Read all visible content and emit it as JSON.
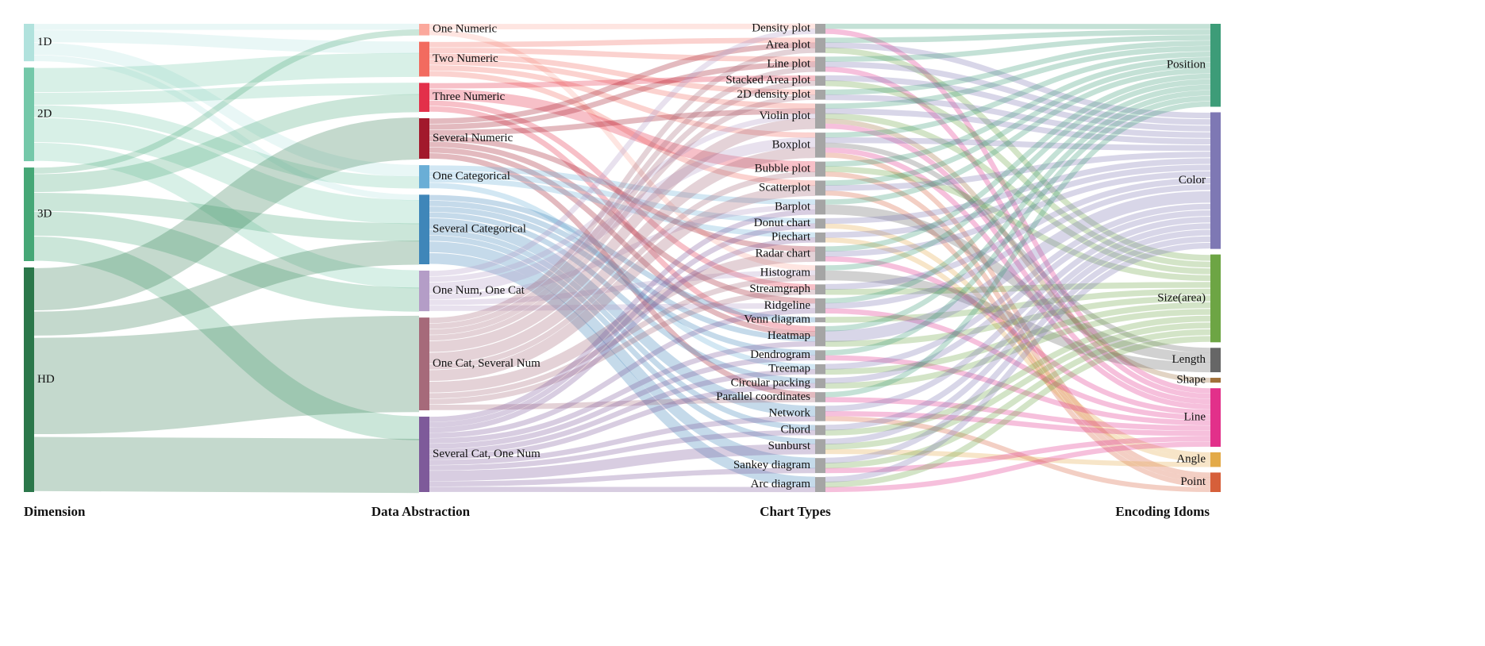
{
  "columns": [
    {
      "title": "Dimension",
      "align": "start"
    },
    {
      "title": "Data Abstraction",
      "align": "middle"
    },
    {
      "title": "Chart Types",
      "align": "middle"
    },
    {
      "title": "Encoding Idoms",
      "align": "end"
    }
  ],
  "columns_nodes": [
    [
      {
        "id": "1D",
        "label": "1D",
        "color": "#b1e2dd",
        "value": 6
      },
      {
        "id": "2D",
        "label": "2D",
        "color": "#74c8a9",
        "value": 15
      },
      {
        "id": "3D",
        "label": "3D",
        "color": "#45a776",
        "value": 15
      },
      {
        "id": "HD",
        "label": "HD",
        "color": "#2b774a",
        "value": 36
      }
    ],
    [
      {
        "id": "one_numeric",
        "label": "One Numeric",
        "color": "#fba89c",
        "value": 2
      },
      {
        "id": "two_numeric",
        "label": "Two Numeric",
        "color": "#f26b5f",
        "value": 6
      },
      {
        "id": "three_numeric",
        "label": "Three Numeric",
        "color": "#e3304a",
        "value": 5
      },
      {
        "id": "several_numeric",
        "label": "Several Numeric",
        "color": "#a2192c",
        "value": 7
      },
      {
        "id": "one_categorical",
        "label": "One Categorical",
        "color": "#6aaed6",
        "value": 4
      },
      {
        "id": "several_categorical",
        "label": "Several Categorical",
        "color": "#3f86b9",
        "value": 12
      },
      {
        "id": "one_num_one_cat",
        "label": "One Num, One Cat",
        "color": "#b49dc7",
        "value": 7
      },
      {
        "id": "one_cat_several_num",
        "label": "One Cat, Several Num",
        "color": "#a66a7a",
        "value": 16
      },
      {
        "id": "several_cat_one_num",
        "label": "Several Cat, One Num",
        "color": "#7e5a9a",
        "value": 13
      }
    ],
    [
      {
        "id": "density_plot",
        "label": "Density plot",
        "color": "#a5a5a5",
        "value": 2
      },
      {
        "id": "area_plot",
        "label": "Area plot",
        "color": "#a5a5a5",
        "value": 3
      },
      {
        "id": "line_plot",
        "label": "Line plot",
        "color": "#a5a5a5",
        "value": 3
      },
      {
        "id": "stacked_area_plot",
        "label": "Stacked Area plot",
        "color": "#a5a5a5",
        "value": 2
      },
      {
        "id": "2d_density_plot",
        "label": "2D density plot",
        "color": "#a5a5a5",
        "value": 2
      },
      {
        "id": "violin_plot",
        "label": "Violin plot",
        "color": "#a5a5a5",
        "value": 5
      },
      {
        "id": "boxplot",
        "label": "Boxplot",
        "color": "#a5a5a5",
        "value": 5
      },
      {
        "id": "bubble_plot",
        "label": "Bubble plot",
        "color": "#a5a5a5",
        "value": 3
      },
      {
        "id": "scatterplot",
        "label": "Scatterplot",
        "color": "#a5a5a5",
        "value": 3
      },
      {
        "id": "barplot",
        "label": "Barplot",
        "color": "#a5a5a5",
        "value": 3
      },
      {
        "id": "donut_chart",
        "label": "Donut chart",
        "color": "#a5a5a5",
        "value": 2
      },
      {
        "id": "piechart",
        "label": "Piechart",
        "color": "#a5a5a5",
        "value": 2
      },
      {
        "id": "radar_chart",
        "label": "Radar chart",
        "color": "#a5a5a5",
        "value": 3
      },
      {
        "id": "histogram",
        "label": "Histogram",
        "color": "#a5a5a5",
        "value": 3
      },
      {
        "id": "streamgraph",
        "label": "Streamgraph",
        "color": "#a5a5a5",
        "value": 2
      },
      {
        "id": "ridgeline",
        "label": "Ridgeline",
        "color": "#a5a5a5",
        "value": 3
      },
      {
        "id": "venn_diagram",
        "label": "Venn diagram",
        "color": "#a5a5a5",
        "value": 1
      },
      {
        "id": "heatmap",
        "label": "Heatmap",
        "color": "#a5a5a5",
        "value": 4
      },
      {
        "id": "dendrogram",
        "label": "Dendrogram",
        "color": "#a5a5a5",
        "value": 2
      },
      {
        "id": "treemap",
        "label": "Treemap",
        "color": "#a5a5a5",
        "value": 2
      },
      {
        "id": "circular_packing",
        "label": "Circular packing",
        "color": "#a5a5a5",
        "value": 2
      },
      {
        "id": "parallel_coordinates",
        "label": "Parallel coordinates",
        "color": "#a5a5a5",
        "value": 2
      },
      {
        "id": "network",
        "label": "Network",
        "color": "#a5a5a5",
        "value": 3
      },
      {
        "id": "chord",
        "label": "Chord",
        "color": "#a5a5a5",
        "value": 2
      },
      {
        "id": "sunburst",
        "label": "Sunburst",
        "color": "#a5a5a5",
        "value": 3
      },
      {
        "id": "sankey_diagram",
        "label": "Sankey diagram",
        "color": "#a5a5a5",
        "value": 3
      },
      {
        "id": "arc_diagram",
        "label": "Arc diagram",
        "color": "#a5a5a5",
        "value": 3
      }
    ],
    [
      {
        "id": "position",
        "label": "Position",
        "color": "#3d9c78",
        "value": 17
      },
      {
        "id": "color",
        "label": "Color",
        "color": "#7e78b4",
        "value": 28
      },
      {
        "id": "size_area",
        "label": "Size(area)",
        "color": "#6da544",
        "value": 18
      },
      {
        "id": "length",
        "label": "Length",
        "color": "#666666",
        "value": 5
      },
      {
        "id": "shape",
        "label": "Shape",
        "color": "#a0703a",
        "value": 1
      },
      {
        "id": "line",
        "label": "Line",
        "color": "#e2308a",
        "value": 12
      },
      {
        "id": "angle",
        "label": "Angle",
        "color": "#e3aa48",
        "value": 3
      },
      {
        "id": "point",
        "label": "Point",
        "color": "#d65f3a",
        "value": 4
      }
    ]
  ],
  "links": [
    [
      "1D",
      "one_numeric",
      1
    ],
    [
      "1D",
      "two_numeric",
      2
    ],
    [
      "1D",
      "one_categorical",
      2
    ],
    [
      "1D",
      "several_categorical",
      1
    ],
    [
      "2D",
      "two_numeric",
      4
    ],
    [
      "2D",
      "three_numeric",
      2
    ],
    [
      "2D",
      "one_categorical",
      2
    ],
    [
      "2D",
      "several_categorical",
      4
    ],
    [
      "2D",
      "one_num_one_cat",
      3
    ],
    [
      "3D",
      "one_numeric",
      1
    ],
    [
      "3D",
      "three_numeric",
      3
    ],
    [
      "3D",
      "several_categorical",
      3
    ],
    [
      "3D",
      "one_num_one_cat",
      4
    ],
    [
      "3D",
      "several_cat_one_num",
      4
    ],
    [
      "HD",
      "several_numeric",
      7
    ],
    [
      "HD",
      "several_categorical",
      4
    ],
    [
      "HD",
      "one_cat_several_num",
      16
    ],
    [
      "HD",
      "several_cat_one_num",
      9
    ],
    [
      "one_numeric",
      "density_plot",
      1
    ],
    [
      "one_numeric",
      "histogram",
      1
    ],
    [
      "two_numeric",
      "area_plot",
      1
    ],
    [
      "two_numeric",
      "line_plot",
      1
    ],
    [
      "two_numeric",
      "2d_density_plot",
      1
    ],
    [
      "two_numeric",
      "scatterplot",
      1
    ],
    [
      "two_numeric",
      "boxplot",
      1
    ],
    [
      "two_numeric",
      "violin_plot",
      1
    ],
    [
      "three_numeric",
      "bubble_plot",
      2
    ],
    [
      "three_numeric",
      "stacked_area_plot",
      1
    ],
    [
      "three_numeric",
      "streamgraph",
      1
    ],
    [
      "three_numeric",
      "heatmap",
      1
    ],
    [
      "several_numeric",
      "line_plot",
      1
    ],
    [
      "several_numeric",
      "area_plot",
      1
    ],
    [
      "several_numeric",
      "radar_chart",
      1
    ],
    [
      "several_numeric",
      "parallel_coordinates",
      1
    ],
    [
      "several_numeric",
      "heatmap",
      1
    ],
    [
      "several_numeric",
      "ridgeline",
      1
    ],
    [
      "several_numeric",
      "violin_plot",
      1
    ],
    [
      "one_categorical",
      "barplot",
      1
    ],
    [
      "one_categorical",
      "donut_chart",
      1
    ],
    [
      "one_categorical",
      "piechart",
      1
    ],
    [
      "one_categorical",
      "treemap",
      1
    ],
    [
      "several_categorical",
      "venn_diagram",
      1
    ],
    [
      "several_categorical",
      "heatmap",
      1
    ],
    [
      "several_categorical",
      "dendrogram",
      1
    ],
    [
      "several_categorical",
      "network",
      2
    ],
    [
      "several_categorical",
      "chord",
      1
    ],
    [
      "several_categorical",
      "sankey_diagram",
      2
    ],
    [
      "several_categorical",
      "arc_diagram",
      2
    ],
    [
      "several_categorical",
      "sunburst",
      1
    ],
    [
      "several_categorical",
      "circular_packing",
      1
    ],
    [
      "one_num_one_cat",
      "boxplot",
      2
    ],
    [
      "one_num_one_cat",
      "violin_plot",
      1
    ],
    [
      "one_num_one_cat",
      "density_plot",
      1
    ],
    [
      "one_num_one_cat",
      "barplot",
      1
    ],
    [
      "one_num_one_cat",
      "histogram",
      1
    ],
    [
      "one_num_one_cat",
      "ridgeline",
      1
    ],
    [
      "one_cat_several_num",
      "boxplot",
      2
    ],
    [
      "one_cat_several_num",
      "violin_plot",
      2
    ],
    [
      "one_cat_several_num",
      "area_plot",
      1
    ],
    [
      "one_cat_several_num",
      "line_plot",
      1
    ],
    [
      "one_cat_several_num",
      "stacked_area_plot",
      1
    ],
    [
      "one_cat_several_num",
      "2d_density_plot",
      1
    ],
    [
      "one_cat_several_num",
      "bubble_plot",
      1
    ],
    [
      "one_cat_several_num",
      "scatterplot",
      2
    ],
    [
      "one_cat_several_num",
      "radar_chart",
      2
    ],
    [
      "one_cat_several_num",
      "histogram",
      1
    ],
    [
      "one_cat_several_num",
      "streamgraph",
      1
    ],
    [
      "one_cat_several_num",
      "parallel_coordinates",
      1
    ],
    [
      "several_cat_one_num",
      "barplot",
      1
    ],
    [
      "several_cat_one_num",
      "donut_chart",
      1
    ],
    [
      "several_cat_one_num",
      "piechart",
      1
    ],
    [
      "several_cat_one_num",
      "ridgeline",
      1
    ],
    [
      "several_cat_one_num",
      "heatmap",
      1
    ],
    [
      "several_cat_one_num",
      "dendrogram",
      1
    ],
    [
      "several_cat_one_num",
      "treemap",
      1
    ],
    [
      "several_cat_one_num",
      "circular_packing",
      1
    ],
    [
      "several_cat_one_num",
      "network",
      1
    ],
    [
      "several_cat_one_num",
      "chord",
      1
    ],
    [
      "several_cat_one_num",
      "sunburst",
      2
    ],
    [
      "several_cat_one_num",
      "sankey_diagram",
      1
    ],
    [
      "several_cat_one_num",
      "arc_diagram",
      1
    ],
    [
      "density_plot",
      "position",
      1
    ],
    [
      "density_plot",
      "line",
      1
    ],
    [
      "area_plot",
      "position",
      1
    ],
    [
      "area_plot",
      "size_area",
      1
    ],
    [
      "area_plot",
      "color",
      1
    ],
    [
      "line_plot",
      "line",
      1
    ],
    [
      "line_plot",
      "position",
      1
    ],
    [
      "line_plot",
      "color",
      1
    ],
    [
      "stacked_area_plot",
      "size_area",
      1
    ],
    [
      "stacked_area_plot",
      "color",
      1
    ],
    [
      "2d_density_plot",
      "color",
      1
    ],
    [
      "2d_density_plot",
      "position",
      1
    ],
    [
      "violin_plot",
      "position",
      1
    ],
    [
      "violin_plot",
      "size_area",
      1
    ],
    [
      "violin_plot",
      "color",
      1
    ],
    [
      "violin_plot",
      "shape",
      1
    ],
    [
      "violin_plot",
      "line",
      1
    ],
    [
      "boxplot",
      "position",
      1
    ],
    [
      "boxplot",
      "length",
      1
    ],
    [
      "boxplot",
      "line",
      1
    ],
    [
      "boxplot",
      "color",
      1
    ],
    [
      "boxplot",
      "point",
      1
    ],
    [
      "bubble_plot",
      "size_area",
      1
    ],
    [
      "bubble_plot",
      "position",
      1
    ],
    [
      "bubble_plot",
      "point",
      1
    ],
    [
      "scatterplot",
      "position",
      1
    ],
    [
      "scatterplot",
      "point",
      1
    ],
    [
      "scatterplot",
      "color",
      1
    ],
    [
      "barplot",
      "length",
      2
    ],
    [
      "barplot",
      "position",
      1
    ],
    [
      "donut_chart",
      "angle",
      1
    ],
    [
      "donut_chart",
      "color",
      1
    ],
    [
      "piechart",
      "angle",
      1
    ],
    [
      "piechart",
      "color",
      1
    ],
    [
      "radar_chart",
      "line",
      1
    ],
    [
      "radar_chart",
      "position",
      1
    ],
    [
      "radar_chart",
      "color",
      1
    ],
    [
      "histogram",
      "length",
      2
    ],
    [
      "histogram",
      "position",
      1
    ],
    [
      "streamgraph",
      "size_area",
      1
    ],
    [
      "streamgraph",
      "color",
      1
    ],
    [
      "ridgeline",
      "position",
      1
    ],
    [
      "ridgeline",
      "line",
      1
    ],
    [
      "ridgeline",
      "color",
      1
    ],
    [
      "venn_diagram",
      "size_area",
      1
    ],
    [
      "heatmap",
      "color",
      2
    ],
    [
      "heatmap",
      "position",
      1
    ],
    [
      "heatmap",
      "size_area",
      1
    ],
    [
      "dendrogram",
      "line",
      1
    ],
    [
      "dendrogram",
      "position",
      1
    ],
    [
      "treemap",
      "size_area",
      1
    ],
    [
      "treemap",
      "color",
      1
    ],
    [
      "circular_packing",
      "size_area",
      1
    ],
    [
      "circular_packing",
      "color",
      1
    ],
    [
      "parallel_coordinates",
      "line",
      1
    ],
    [
      "parallel_coordinates",
      "position",
      1
    ],
    [
      "network",
      "point",
      1
    ],
    [
      "network",
      "line",
      1
    ],
    [
      "network",
      "color",
      1
    ],
    [
      "chord",
      "size_area",
      1
    ],
    [
      "chord",
      "color",
      1
    ],
    [
      "sunburst",
      "angle",
      1
    ],
    [
      "sunburst",
      "size_area",
      1
    ],
    [
      "sunburst",
      "color",
      1
    ],
    [
      "sankey_diagram",
      "size_area",
      1
    ],
    [
      "sankey_diagram",
      "line",
      1
    ],
    [
      "sankey_diagram",
      "color",
      1
    ],
    [
      "arc_diagram",
      "line",
      1
    ],
    [
      "arc_diagram",
      "size_area",
      1
    ],
    [
      "arc_diagram",
      "color",
      1
    ]
  ]
}
